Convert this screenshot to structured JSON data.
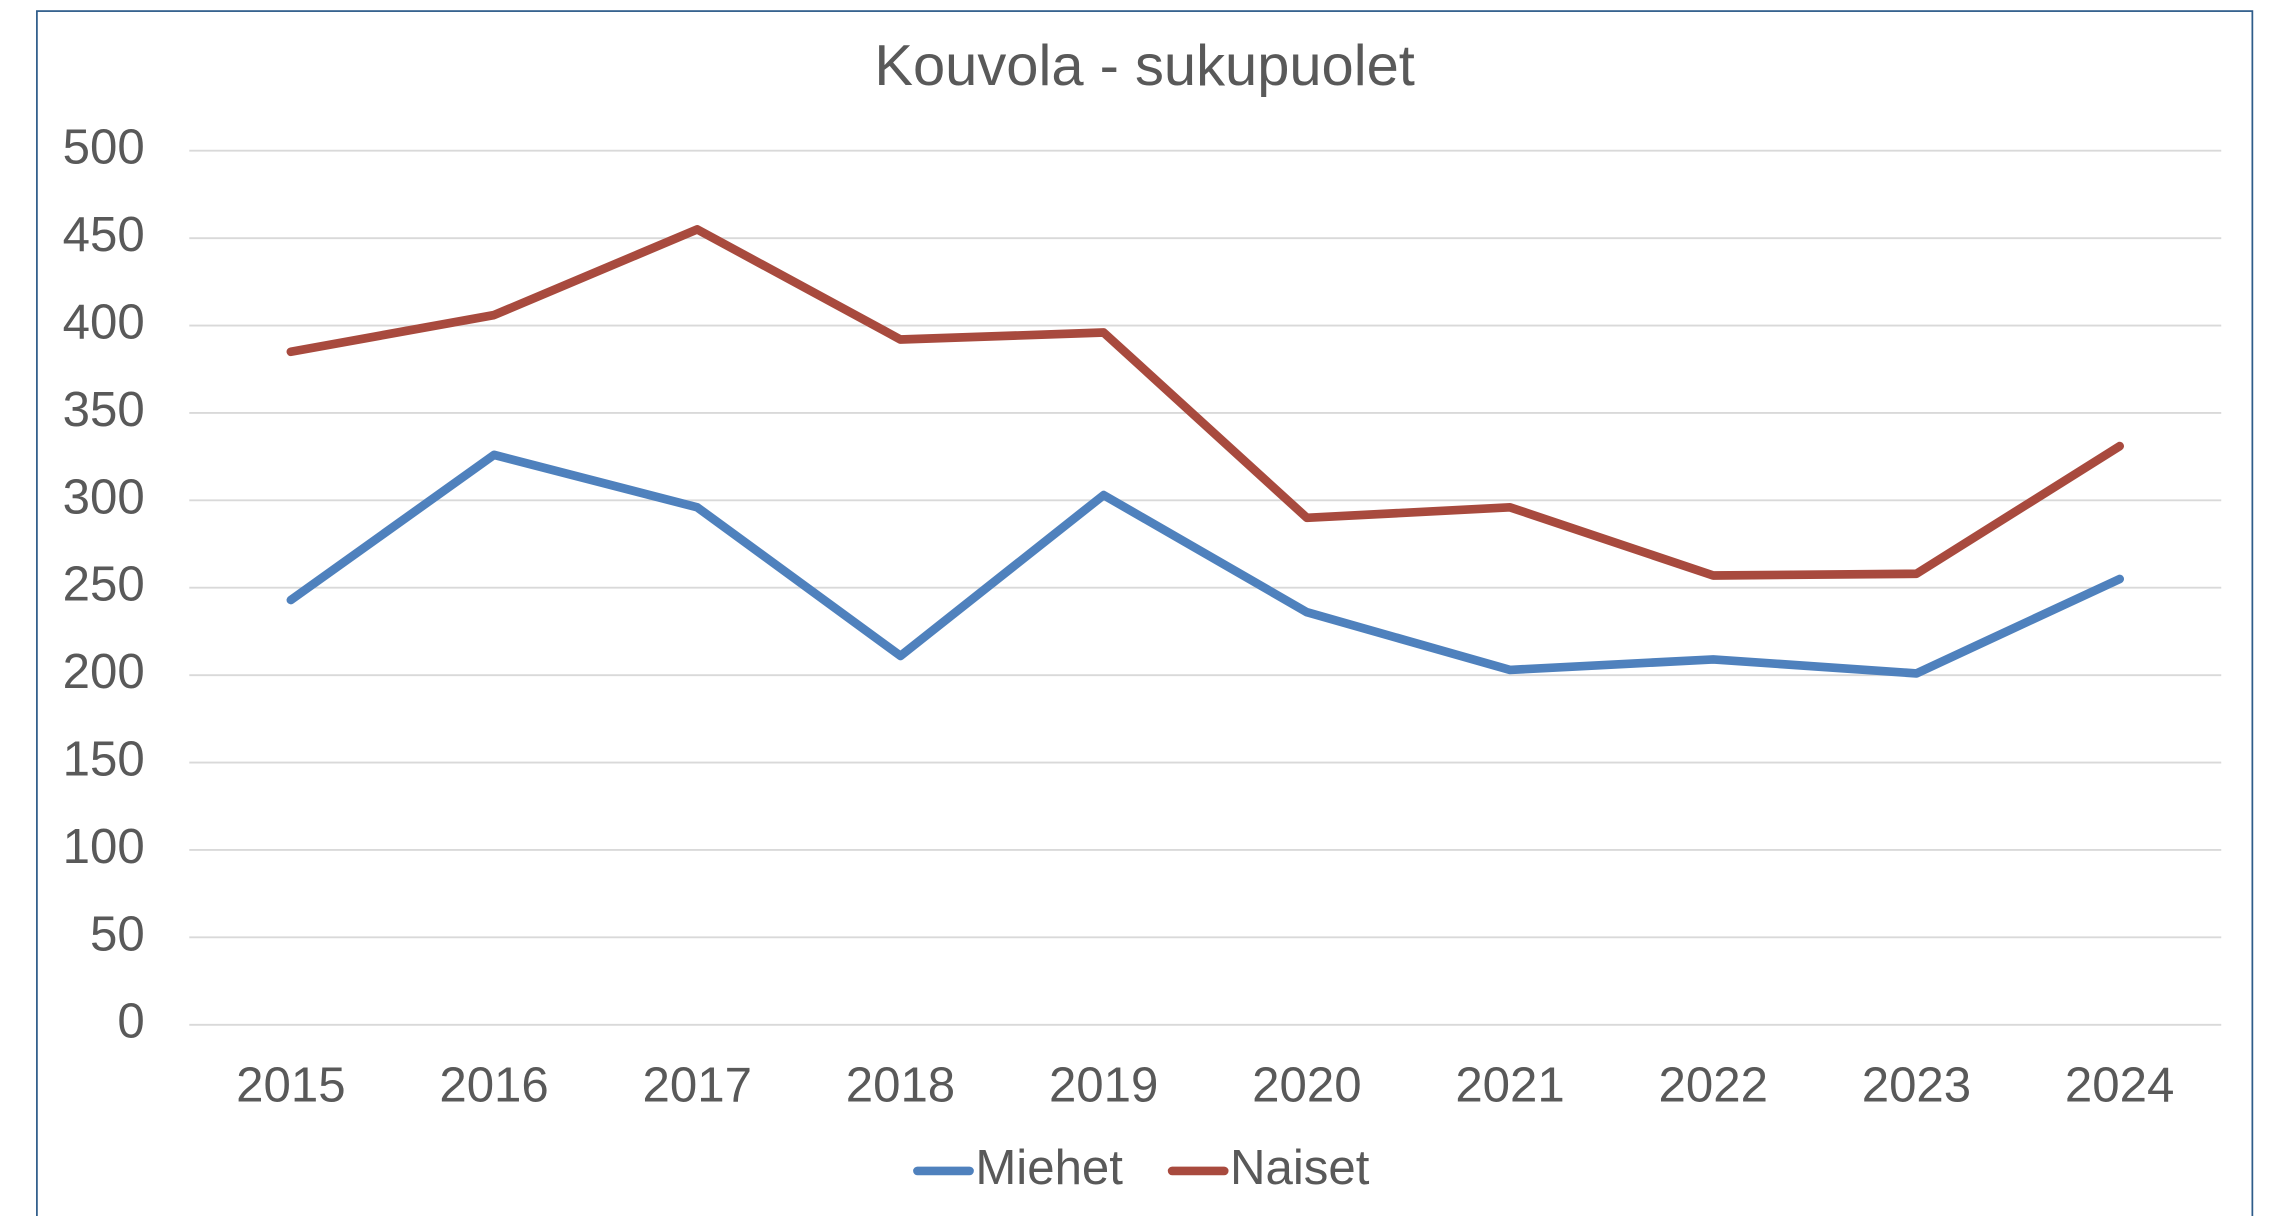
{
  "chart_data": {
    "type": "line",
    "title": "Kouvola - sukupuolet",
    "categories": [
      "2015",
      "2016",
      "2017",
      "2018",
      "2019",
      "2020",
      "2021",
      "2022",
      "2023",
      "2024"
    ],
    "series": [
      {
        "name": "Miehet",
        "color": "#4f81bd",
        "values": [
          243,
          326,
          296,
          211,
          303,
          236,
          203,
          209,
          201,
          255
        ]
      },
      {
        "name": "Naiset",
        "color": "#a84a3e",
        "values": [
          385,
          406,
          455,
          392,
          396,
          290,
          296,
          257,
          258,
          331
        ]
      }
    ],
    "ylim": [
      0,
      500
    ],
    "yticks": [
      0,
      50,
      100,
      150,
      200,
      250,
      300,
      350,
      400,
      450,
      500
    ],
    "grid": true,
    "legend": "bottom"
  }
}
